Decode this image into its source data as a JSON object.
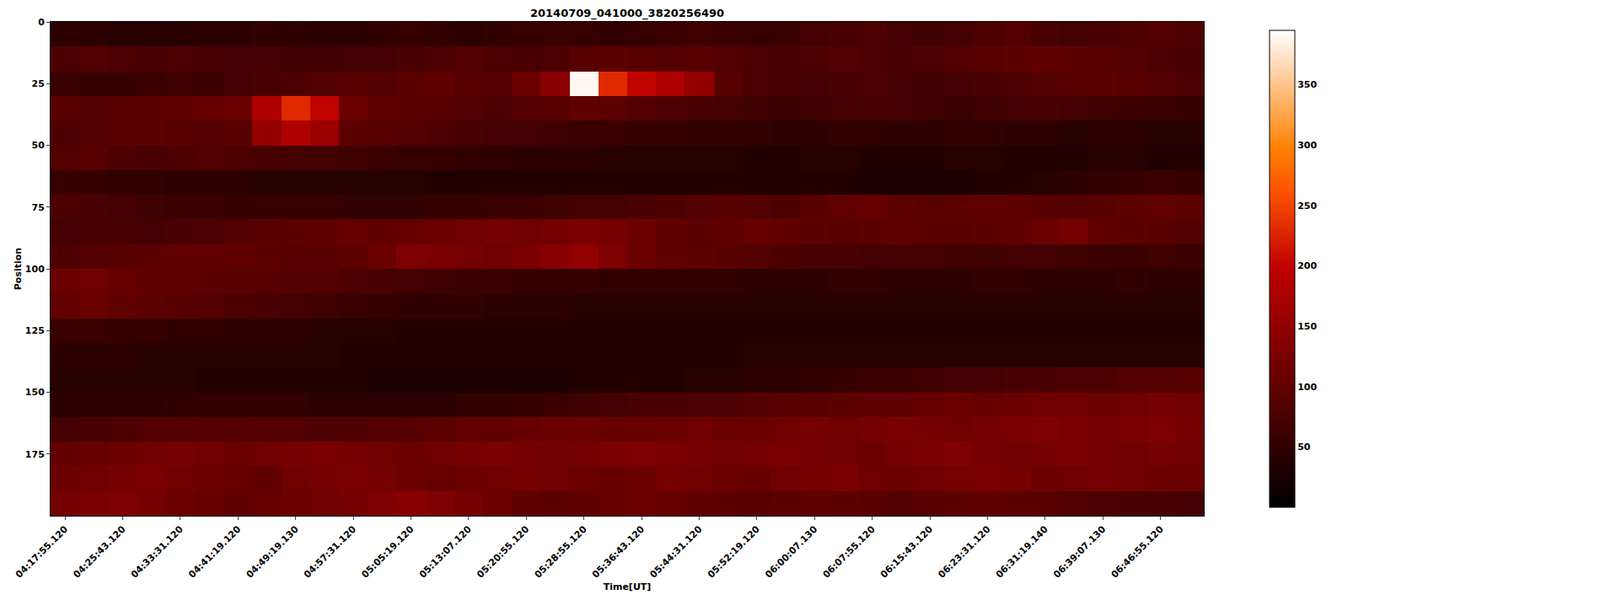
{
  "chart_data": {
    "type": "heatmap",
    "title": "20140709_041000_3820256490",
    "x_label": "Time[UT]",
    "y_label": "Position",
    "x": [
      "04:17:55.120",
      null,
      "04:25:43.120",
      null,
      "04:33:31.120",
      null,
      "04:41:19.120",
      null,
      "04:49:19.130",
      null,
      "04:57:31.120",
      null,
      "05:05:19.120",
      null,
      "05:13:07.120",
      null,
      "05:20:55.120",
      null,
      "05:28:55.120",
      null,
      "05:36:43.120",
      null,
      "05:44:31.120",
      null,
      "05:52:19.120",
      null,
      "06:00:07.130",
      null,
      "06:07:55.120",
      null,
      "06:15:43.120",
      null,
      "06:23:31.120",
      null,
      "06:31:19.140",
      null,
      "06:39:07.130",
      null,
      "06:46:55.120",
      null
    ],
    "y": [
      5,
      15,
      25,
      35,
      45,
      55,
      65,
      75,
      85,
      95,
      105,
      115,
      125,
      135,
      145,
      155,
      165,
      175,
      185,
      195
    ],
    "z": [
      [
        45,
        45,
        40,
        40,
        42,
        45,
        45,
        50,
        48,
        45,
        45,
        50,
        55,
        50,
        45,
        50,
        55,
        60,
        55,
        50,
        55,
        60,
        65,
        60,
        55,
        60,
        70,
        75,
        80,
        70,
        65,
        70,
        80,
        85,
        75,
        70,
        75,
        80,
        85,
        80
      ],
      [
        80,
        85,
        80,
        75,
        80,
        75,
        70,
        70,
        65,
        65,
        70,
        70,
        75,
        80,
        85,
        80,
        75,
        80,
        90,
        95,
        90,
        85,
        90,
        85,
        80,
        75,
        80,
        85,
        80,
        75,
        80,
        85,
        90,
        95,
        100,
        95,
        90,
        85,
        80,
        75
      ],
      [
        60,
        55,
        55,
        60,
        65,
        60,
        70,
        75,
        80,
        85,
        90,
        85,
        95,
        100,
        90,
        85,
        110,
        140,
        390,
        230,
        200,
        180,
        150,
        90,
        80,
        75,
        70,
        75,
        80,
        70,
        65,
        70,
        75,
        80,
        85,
        90,
        95,
        90,
        85,
        80
      ],
      [
        90,
        85,
        90,
        95,
        100,
        105,
        110,
        180,
        230,
        200,
        110,
        100,
        95,
        90,
        85,
        80,
        85,
        90,
        100,
        95,
        85,
        80,
        75,
        70,
        65,
        60,
        65,
        70,
        75,
        70,
        65,
        60,
        65,
        70,
        75,
        70,
        65,
        60,
        60,
        55
      ],
      [
        80,
        85,
        90,
        95,
        90,
        85,
        90,
        150,
        180,
        160,
        95,
        90,
        85,
        80,
        75,
        70,
        70,
        65,
        60,
        60,
        55,
        55,
        50,
        50,
        50,
        45,
        45,
        50,
        50,
        45,
        45,
        50,
        50,
        45,
        45,
        40,
        45,
        45,
        40,
        40
      ],
      [
        85,
        90,
        80,
        75,
        80,
        85,
        80,
        75,
        70,
        70,
        65,
        60,
        55,
        55,
        50,
        50,
        45,
        45,
        45,
        40,
        40,
        40,
        40,
        40,
        35,
        35,
        40,
        40,
        35,
        35,
        35,
        40,
        40,
        35,
        35,
        35,
        40,
        40,
        35,
        35
      ],
      [
        55,
        55,
        50,
        50,
        45,
        45,
        45,
        40,
        40,
        40,
        40,
        40,
        40,
        35,
        35,
        35,
        35,
        35,
        35,
        35,
        35,
        35,
        35,
        35,
        35,
        35,
        35,
        35,
        30,
        30,
        30,
        30,
        35,
        35,
        40,
        45,
        50,
        55,
        60,
        55
      ],
      [
        80,
        75,
        70,
        65,
        60,
        60,
        55,
        55,
        55,
        55,
        50,
        50,
        50,
        55,
        55,
        60,
        60,
        65,
        70,
        70,
        75,
        80,
        85,
        90,
        85,
        80,
        90,
        100,
        105,
        95,
        90,
        95,
        100,
        95,
        90,
        85,
        90,
        95,
        100,
        95
      ],
      [
        70,
        75,
        75,
        70,
        75,
        80,
        85,
        90,
        95,
        100,
        105,
        100,
        105,
        110,
        115,
        120,
        115,
        120,
        125,
        120,
        110,
        100,
        95,
        100,
        105,
        100,
        95,
        90,
        95,
        100,
        95,
        90,
        95,
        100,
        110,
        120,
        100,
        95,
        90,
        85
      ],
      [
        80,
        85,
        90,
        95,
        100,
        100,
        100,
        95,
        90,
        90,
        95,
        110,
        130,
        125,
        120,
        115,
        125,
        140,
        150,
        130,
        110,
        100,
        95,
        90,
        85,
        80,
        75,
        75,
        70,
        70,
        70,
        65,
        65,
        70,
        70,
        65,
        60,
        60,
        65,
        60
      ],
      [
        110,
        115,
        105,
        100,
        100,
        95,
        90,
        90,
        85,
        85,
        80,
        75,
        70,
        65,
        60,
        60,
        55,
        55,
        55,
        50,
        50,
        50,
        50,
        50,
        45,
        45,
        45,
        50,
        50,
        45,
        45,
        45,
        50,
        50,
        45,
        45,
        45,
        50,
        45,
        45
      ],
      [
        100,
        110,
        100,
        95,
        90,
        85,
        80,
        75,
        70,
        65,
        60,
        55,
        50,
        50,
        50,
        45,
        45,
        45,
        40,
        40,
        40,
        40,
        40,
        40,
        40,
        40,
        40,
        40,
        40,
        40,
        40,
        40,
        40,
        40,
        40,
        40,
        40,
        40,
        40,
        40
      ],
      [
        60,
        60,
        55,
        55,
        50,
        50,
        45,
        45,
        45,
        40,
        40,
        40,
        35,
        35,
        35,
        35,
        35,
        35,
        35,
        35,
        35,
        35,
        35,
        35,
        35,
        35,
        35,
        35,
        35,
        35,
        35,
        35,
        35,
        35,
        35,
        35,
        35,
        35,
        35,
        35
      ],
      [
        45,
        45,
        45,
        40,
        40,
        40,
        40,
        40,
        40,
        40,
        35,
        35,
        35,
        35,
        35,
        35,
        35,
        35,
        35,
        35,
        35,
        35,
        35,
        35,
        40,
        40,
        40,
        40,
        40,
        40,
        40,
        40,
        40,
        40,
        40,
        40,
        40,
        40,
        40,
        40
      ],
      [
        40,
        40,
        40,
        40,
        40,
        35,
        35,
        35,
        35,
        35,
        35,
        30,
        30,
        30,
        30,
        30,
        30,
        30,
        35,
        35,
        35,
        35,
        40,
        40,
        45,
        45,
        50,
        55,
        60,
        60,
        65,
        70,
        70,
        75,
        75,
        80,
        80,
        85,
        85,
        90
      ],
      [
        45,
        45,
        45,
        45,
        50,
        50,
        50,
        50,
        50,
        45,
        45,
        45,
        45,
        45,
        50,
        50,
        55,
        60,
        65,
        70,
        75,
        75,
        80,
        80,
        85,
        90,
        90,
        95,
        100,
        100,
        105,
        110,
        105,
        110,
        115,
        115,
        110,
        115,
        120,
        115
      ],
      [
        70,
        75,
        80,
        85,
        85,
        90,
        90,
        85,
        85,
        80,
        80,
        85,
        90,
        95,
        100,
        100,
        105,
        110,
        110,
        105,
        105,
        110,
        115,
        110,
        110,
        115,
        120,
        115,
        120,
        125,
        120,
        115,
        120,
        125,
        130,
        125,
        120,
        125,
        130,
        120
      ],
      [
        100,
        105,
        110,
        115,
        120,
        115,
        110,
        115,
        120,
        125,
        120,
        115,
        110,
        115,
        120,
        125,
        120,
        115,
        120,
        125,
        130,
        125,
        120,
        115,
        120,
        125,
        120,
        115,
        110,
        120,
        125,
        130,
        120,
        115,
        120,
        125,
        120,
        115,
        120,
        115
      ],
      [
        110,
        115,
        120,
        125,
        115,
        110,
        105,
        100,
        115,
        120,
        125,
        120,
        110,
        105,
        110,
        115,
        120,
        115,
        110,
        105,
        110,
        120,
        115,
        110,
        105,
        115,
        120,
        125,
        115,
        110,
        115,
        120,
        125,
        120,
        110,
        115,
        120,
        115,
        110,
        110
      ],
      [
        120,
        125,
        130,
        120,
        110,
        105,
        100,
        105,
        110,
        115,
        120,
        130,
        140,
        130,
        120,
        110,
        100,
        95,
        100,
        105,
        110,
        105,
        100,
        95,
        90,
        95,
        100,
        95,
        90,
        85,
        90,
        95,
        100,
        95,
        90,
        85,
        80,
        75,
        75,
        70
      ]
    ],
    "ylim": [
      200,
      0
    ],
    "yticks": [
      0,
      25,
      50,
      75,
      100,
      125,
      150,
      175
    ],
    "colorbar": {
      "range": [
        0,
        395
      ],
      "ticks": [
        50,
        100,
        150,
        200,
        250,
        300,
        350
      ]
    }
  }
}
